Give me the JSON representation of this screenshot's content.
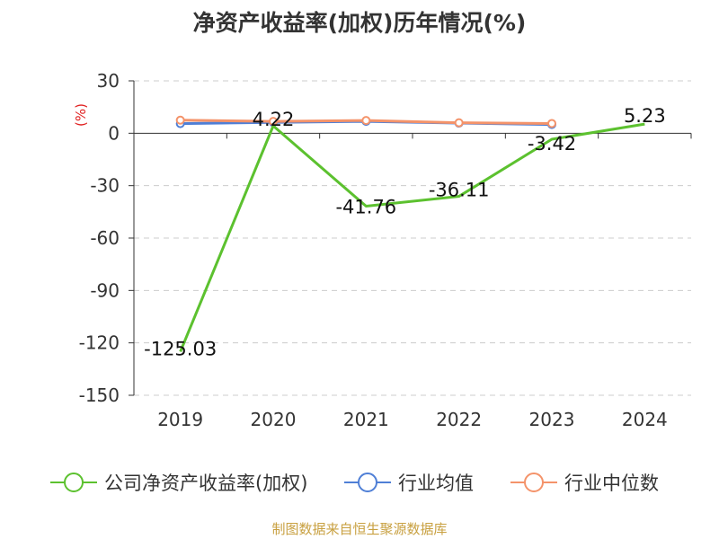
{
  "chart_data": {
    "type": "line",
    "title": "净资产收益率(加权)历年情况(%)",
    "ylabel": "(%)",
    "xlabel": "",
    "categories": [
      "2019",
      "2020",
      "2021",
      "2022",
      "2023",
      "2024"
    ],
    "yticks": [
      30,
      0,
      -30,
      -60,
      -90,
      -120,
      -150
    ],
    "ylim": [
      -150,
      30
    ],
    "grid": true,
    "legend_position": "bottom",
    "series": [
      {
        "name": "公司净资产收益率(加权)",
        "color": "#5cc12f",
        "values": [
          -125.03,
          4.22,
          -41.76,
          -36.11,
          -3.42,
          5.23
        ],
        "labels": [
          "-125.03",
          "4.22",
          "-41.76",
          "-36.11",
          "-3.42",
          "5.23"
        ]
      },
      {
        "name": "行业均值",
        "color": "#4f7fd6",
        "values": [
          5.5,
          6.2,
          6.8,
          5.8,
          5.0,
          null
        ]
      },
      {
        "name": "行业中位数",
        "color": "#f4936a",
        "values": [
          7.5,
          6.8,
          7.3,
          6.0,
          5.6,
          null
        ]
      }
    ],
    "source": "制图数据来自恒生聚源数据库",
    "colors": {
      "axis": "#333333",
      "grid": "#cccccc",
      "ylabel": "#e02020",
      "source": "#c8a040",
      "title": "#333333"
    }
  }
}
